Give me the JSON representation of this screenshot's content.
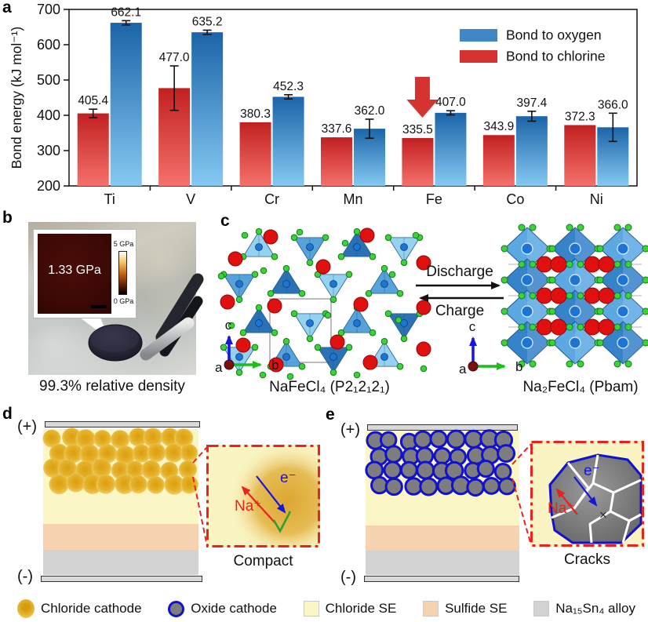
{
  "panel_letters": {
    "a": "a",
    "b": "b",
    "c": "c",
    "d": "d",
    "e": "e"
  },
  "chart_data": {
    "type": "bar",
    "title": "",
    "categories": [
      "Ti",
      "V",
      "Cr",
      "Mn",
      "Fe",
      "Co",
      "Ni"
    ],
    "series": [
      {
        "name": "Bond to chlorine",
        "values": [
          405.4,
          477.0,
          380.3,
          337.6,
          335.5,
          343.9,
          372.3
        ],
        "errors": [
          12,
          63,
          0,
          0,
          0,
          0,
          0
        ]
      },
      {
        "name": "Bond to oxygen",
        "values": [
          662.1,
          635.2,
          452.3,
          362.0,
          407.0,
          397.4,
          366.0
        ],
        "errors": [
          6,
          6,
          6,
          27,
          6,
          14,
          40
        ]
      }
    ],
    "legend": [
      {
        "label": "Bond to oxygen",
        "color": "#3f87c5"
      },
      {
        "label": "Bond to chlorine",
        "color": "#d5332f"
      }
    ],
    "legend_position": "top-right",
    "grid": false,
    "ylabel": "Bond energy (kJ mol⁻¹)",
    "ylim": [
      200,
      700
    ],
    "yticks": [
      200,
      300,
      400,
      500,
      600,
      700
    ],
    "annotation": {
      "type": "down-arrow",
      "category": "Fe",
      "series": "Bond to chlorine",
      "color": "#d5332f"
    }
  },
  "panel_b": {
    "inset_label": "1.33 GPa",
    "scale_max": "5 GPa",
    "scale_min": "0 GPa",
    "caption": "99.3% relative density"
  },
  "panel_c": {
    "forward_label": "Discharge",
    "reverse_label": "Charge",
    "left_structure_label": "NaFeCl₄ (P2₁2₁2₁)",
    "right_structure_label": "Na₂FeCl₄ (Pbam)",
    "axis_labels": {
      "a": "a",
      "b": "b",
      "c": "c"
    }
  },
  "panel_d": {
    "positive": "(+)",
    "negative": "(-)",
    "ion_label": "Na⁺",
    "electron_label": "e⁻",
    "mark": "check",
    "caption": "Compact"
  },
  "panel_e": {
    "positive": "(+)",
    "negative": "(-)",
    "ion_label": "Na⁺",
    "electron_label": "e⁻",
    "mark": "×",
    "caption": "Cracks"
  },
  "bottom_legend": [
    {
      "label": "Chloride cathode",
      "swatch": "chloride-cathode-circle"
    },
    {
      "label": "Oxide cathode",
      "swatch": "oxide-cathode-circle"
    },
    {
      "label": "Chloride SE",
      "swatch": "chloride-se-square"
    },
    {
      "label": "Sulfide SE",
      "swatch": "sulfide-se-square"
    },
    {
      "label": "Na₁₅Sn₄ alloy",
      "swatch": "alloy-square"
    }
  ],
  "colors": {
    "oxygen_bar_top": "#1b64a8",
    "oxygen_bar_bottom": "#85c9f2",
    "chlorine_bar_top": "#c12020",
    "chlorine_bar_bottom": "#f5716b",
    "arrow_red": "#d5332f",
    "chloride_se": "#fbf6c5",
    "sulfide_se": "#f7d2b0",
    "alloy": "#d2d2d2",
    "electrode": "#d9d9d9",
    "cathode_gold_core": "#db9e0f",
    "cathode_gold_edge": "#f0d478",
    "oxide_fill": "#7d7d7d",
    "oxide_ring": "#1212cc",
    "inset_border": "#e8231d",
    "inset_bg": "#faf4c2",
    "na_red": "#e8231d",
    "e_blue": "#1515dd",
    "check_green": "#2fa12f",
    "tetra_light": "#8fd0f0",
    "tetra_mid": "#4c9fd8",
    "tetra_dark": "#1f6bb0",
    "cl_green": "#3bd23b",
    "na_sphere": "#e01010",
    "fe_blue": "#1d74d4"
  }
}
